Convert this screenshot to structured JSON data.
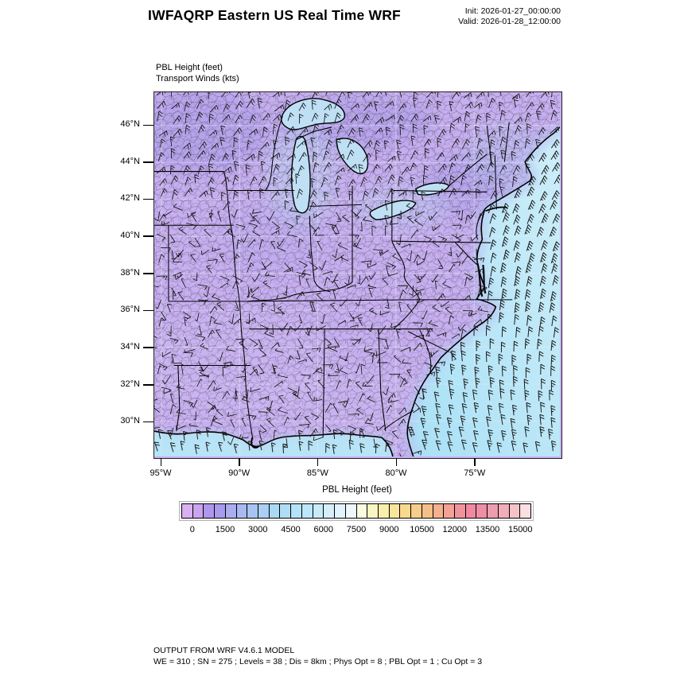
{
  "header": {
    "title": "IWFAQRP Eastern US Real Time WRF",
    "init": "Init: 2026-01-27_00:00:00",
    "valid": "Valid: 2026-01-28_12:00:00"
  },
  "plot": {
    "field_label": "PBL Height   (feet)",
    "wind_label": "Transport Winds   (kts)",
    "lat_tick_labels": [
      "46°N",
      "44°N",
      "42°N",
      "40°N",
      "38°N",
      "36°N",
      "34°N",
      "32°N",
      "30°N"
    ],
    "lon_tick_labels": [
      "95°W",
      "90°W",
      "85°W",
      "80°W",
      "75°W"
    ]
  },
  "colorbar": {
    "title": "PBL Height  (feet)",
    "tick_labels": [
      "0",
      "1500",
      "3000",
      "4500",
      "6000",
      "7500",
      "9000",
      "10500",
      "12000",
      "13500",
      "15000"
    ],
    "cell_colors": [
      "#d9b1f2",
      "#c9a5f0",
      "#b096ec",
      "#a89aee",
      "#a9aef0",
      "#a9baf2",
      "#a9c4f3",
      "#aacef4",
      "#abd8f6",
      "#aedef7",
      "#b2e3f8",
      "#bce7f9",
      "#c8ebfa",
      "#d5effb",
      "#e1f3fc",
      "#edf7fd",
      "#fbfbdf",
      "#faf5c2",
      "#f9eeab",
      "#f8e59b",
      "#f7da90",
      "#f6cd8a",
      "#f5bf8a",
      "#f4b18e",
      "#f3a295",
      "#f2939c",
      "#f189a2",
      "#ee8ea7",
      "#ee9daf",
      "#f0aeba",
      "#f3c3c8",
      "#fbdfe3"
    ]
  },
  "map": {
    "land_color": "#c7aff0",
    "ocean_near_color": "#b7c4f2",
    "ocean_far_color": "#a9e0f6",
    "gulf_color": "#b7e4f6",
    "lake_color": "#bedff4",
    "boundary_color": "#000000",
    "barb_color": "#141414"
  },
  "footer": {
    "line1": "OUTPUT FROM WRF V4.6.1 MODEL",
    "line2": "WE = 310 ; SN = 275 ; Levels = 38 ; Dis = 8km ; Phys Opt = 8 ; PBL Opt = 1 ; Cu Opt = 3"
  },
  "chart_data": {
    "type": "heatmap",
    "title": "PBL Height (feet) with Transport Winds (kts)",
    "colorbar_levels_feet": [
      0,
      1500,
      3000,
      4500,
      6000,
      7500,
      9000,
      10500,
      12000,
      13500,
      15000
    ],
    "lat_ticks_deg_n": [
      46,
      44,
      42,
      40,
      38,
      36,
      34,
      32,
      30
    ],
    "lon_ticks_deg_w": [
      95,
      90,
      85,
      80,
      75
    ],
    "legend_position": "bottom"
  }
}
